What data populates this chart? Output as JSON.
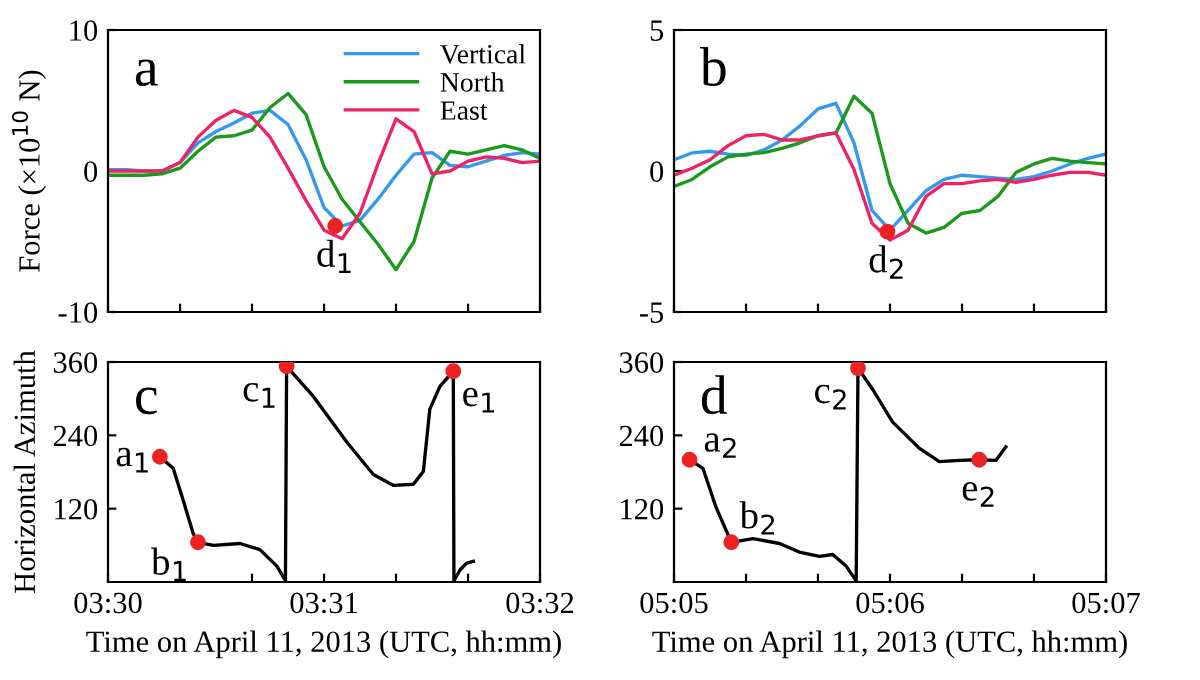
{
  "chart_data": [
    {
      "type": "line",
      "ylabel": "Force (×10$^{10}$ N)",
      "xlim": [
        3.5,
        3.53333
      ],
      "ylim": [
        -10,
        10
      ],
      "yticks": [
        -10,
        0,
        10
      ],
      "xticks": [
        {
          "value": 3.5,
          "label": null
        },
        {
          "value": 3.50556,
          "label": null
        },
        {
          "value": 3.51111,
          "label": null
        },
        {
          "value": 3.51667,
          "label": null
        },
        {
          "value": 3.52222,
          "label": null
        },
        {
          "value": 3.52778,
          "label": null
        },
        {
          "value": 3.53333,
          "label": null
        }
      ],
      "tick_labels": "y",
      "legend": "top right",
      "grid": false,
      "line_style": "solid",
      "annotations": [
        "a",
        {
          "text": "d$_{1}$",
          "x": 3.51753,
          "y": -3.9
        }
      ],
      "x": [
        3.5,
        3.50139,
        3.50278,
        3.50417,
        3.50556,
        3.50694,
        3.50833,
        3.50972,
        3.51111,
        3.5125,
        3.51389,
        3.51528,
        3.51667,
        3.51806,
        3.51944,
        3.52083,
        3.52222,
        3.52361,
        3.525,
        3.52639,
        3.52778,
        3.52917,
        3.53056,
        3.53194,
        3.53333
      ],
      "series": [
        {
          "name": "Vertical",
          "color": "#3399ee",
          "values": [
            0.1,
            0.1,
            0,
            0,
            0.6,
            2.0,
            2.8,
            3.4,
            4.1,
            4.3,
            3.3,
            0.8,
            -2.6,
            -3.9,
            -3.5,
            -2.0,
            -0.3,
            1.2,
            1.3,
            0.4,
            0.3,
            0.7,
            1.1,
            1.3,
            1.2
          ]
        },
        {
          "name": "North",
          "color": "#1a991a",
          "values": [
            -0.3,
            -0.3,
            -0.3,
            -0.2,
            0.2,
            1.4,
            2.4,
            2.5,
            2.9,
            4.5,
            5.5,
            4.0,
            0.3,
            -2.0,
            -3.6,
            -5.2,
            -7.0,
            -5.0,
            -0.5,
            1.4,
            1.2,
            1.5,
            1.8,
            1.5,
            0.9
          ]
        },
        {
          "name": "East",
          "color": "#ee2266",
          "values": [
            0,
            0,
            0,
            0,
            0.6,
            2.4,
            3.6,
            4.3,
            3.8,
            2.4,
            0.2,
            -2.1,
            -4.2,
            -4.8,
            -3.0,
            0.5,
            3.7,
            2.8,
            -0.2,
            0.0,
            0.7,
            1.0,
            0.9,
            0.6,
            0.7
          ]
        },
        {
          "type": "scatter",
          "color": "#ee2222",
          "marker": "circle",
          "x": [
            3.51753
          ],
          "values": [
            -3.9
          ]
        }
      ]
    },
    {
      "type": "line",
      "xlim": [
        5.08333,
        5.11667
      ],
      "ylim": [
        -5,
        5
      ],
      "yticks": [
        -5,
        0,
        5
      ],
      "xticks": [
        {
          "value": 5.08333,
          "label": null
        },
        {
          "value": 5.08889,
          "label": null
        },
        {
          "value": 5.09444,
          "label": null
        },
        {
          "value": 5.1,
          "label": null
        },
        {
          "value": 5.10556,
          "label": null
        },
        {
          "value": 5.11111,
          "label": null
        },
        {
          "value": 5.11667,
          "label": null
        }
      ],
      "tick_labels": "y",
      "grid": false,
      "line_style": "solid",
      "annotations": [
        "b",
        {
          "text": "d$_{2}$",
          "x": 5.0998,
          "y": -2.15
        }
      ],
      "x": [
        5.08333,
        5.08472,
        5.08611,
        5.0875,
        5.08889,
        5.09028,
        5.09167,
        5.09306,
        5.09444,
        5.09583,
        5.09722,
        5.09861,
        5.1,
        5.10139,
        5.10278,
        5.10417,
        5.10556,
        5.10694,
        5.10833,
        5.10972,
        5.11111,
        5.1125,
        5.11389,
        5.11528,
        5.11667
      ],
      "series": [
        {
          "color": "#3399ee",
          "values": [
            0.4,
            0.64,
            0.7,
            0.6,
            0.55,
            0.75,
            1.1,
            1.6,
            2.2,
            2.4,
            1.0,
            -1.4,
            -2.1,
            -1.4,
            -0.7,
            -0.3,
            -0.15,
            -0.2,
            -0.25,
            -0.3,
            -0.2,
            0,
            0.25,
            0.45,
            0.6
          ]
        },
        {
          "color": "#1a991a",
          "values": [
            -0.55,
            -0.3,
            0.15,
            0.5,
            0.6,
            0.65,
            0.8,
            1.0,
            1.25,
            1.35,
            2.65,
            2.05,
            -0.45,
            -1.85,
            -2.2,
            -2.0,
            -1.5,
            -1.4,
            -0.9,
            -0.05,
            0.25,
            0.45,
            0.35,
            0.3,
            0.25
          ]
        },
        {
          "color": "#ee2266",
          "values": [
            -0.15,
            0.1,
            0.4,
            0.9,
            1.25,
            1.3,
            1.1,
            1.1,
            1.25,
            1.35,
            0.05,
            -1.85,
            -2.45,
            -2.1,
            -0.9,
            -0.45,
            -0.45,
            -0.35,
            -0.3,
            -0.4,
            -0.3,
            -0.15,
            -0.05,
            -0.05,
            -0.15
          ]
        },
        {
          "type": "scatter",
          "color": "#ee2222",
          "marker": "circle",
          "x": [
            5.0998
          ],
          "values": [
            -2.15
          ]
        }
      ]
    },
    {
      "type": "line",
      "ylabel": "Horizontal Azimuth",
      "xlabel": "Time on April 11, 2013 (UTC, hh:mm)",
      "xlim": [
        3.5,
        3.53333
      ],
      "ylim": [
        0,
        360
      ],
      "yticks": [
        120,
        240,
        360
      ],
      "xticks": [
        {
          "value": 3.5,
          "label": "03:30"
        },
        {
          "value": 3.50556,
          "label": null
        },
        {
          "value": 3.51111,
          "label": null
        },
        {
          "value": 3.51667,
          "label": "03:31"
        },
        {
          "value": 3.52222,
          "label": null
        },
        {
          "value": 3.52778,
          "label": null
        },
        {
          "value": 3.53333,
          "label": "03:32"
        }
      ],
      "grid": false,
      "line_style": "solid",
      "annotations": [
        "c",
        {
          "text": "a$_{1}$",
          "x": 3.504,
          "y": 205
        },
        {
          "text": "b$_{1}$",
          "x": 3.50694,
          "y": 65
        },
        {
          "text": "c$_{1}$",
          "x": 3.51378,
          "y": 353
        },
        {
          "text": "e$_{1}$",
          "x": 3.52664,
          "y": 345
        }
      ],
      "series": [
        {
          "color": "#000000",
          "x": [
            3.504,
            3.50503,
            3.50581,
            3.50658,
            3.50694,
            3.50814,
            3.51019,
            3.51172,
            3.51303,
            3.51369,
            3.51378,
            3.51583,
            3.51842,
            3.52047,
            3.52203,
            3.52356,
            3.52433,
            3.52483,
            3.52561,
            3.52664,
            3.52669,
            3.52717,
            3.52767,
            3.52819
          ],
          "values": [
            205,
            186,
            133,
            79,
            65,
            60,
            63,
            53,
            26,
            2,
            353,
            304,
            229,
            176,
            158,
            160,
            181,
            283,
            320,
            345,
            2,
            20,
            31,
            34
          ]
        },
        {
          "type": "scatter",
          "color": "#ee2222",
          "marker": "circle",
          "x": [
            3.504,
            3.50694,
            3.51378,
            3.52664
          ],
          "values": [
            205,
            65,
            353,
            345
          ]
        }
      ]
    },
    {
      "type": "line",
      "xlabel": "Time on April 11, 2013 (UTC, hh:mm)",
      "xlim": [
        5.08333,
        5.11667
      ],
      "ylim": [
        0,
        360
      ],
      "yticks": [
        120,
        240,
        360
      ],
      "xticks": [
        {
          "value": 5.08333,
          "label": "05:05"
        },
        {
          "value": 5.08889,
          "label": null
        },
        {
          "value": 5.09444,
          "label": null
        },
        {
          "value": 5.1,
          "label": "05:06"
        },
        {
          "value": 5.10556,
          "label": null
        },
        {
          "value": 5.11111,
          "label": null
        },
        {
          "value": 5.11667,
          "label": "05:07"
        }
      ],
      "grid": false,
      "line_style": "solid",
      "annotations": [
        "d",
        {
          "text": "a$_{2}$",
          "x": 5.08453,
          "y": 200
        },
        {
          "text": "b$_{2}$",
          "x": 5.08775,
          "y": 65
        },
        {
          "text": "c$_{2}$",
          "x": 5.09753,
          "y": 350
        },
        {
          "text": "e$_{2}$",
          "x": 5.10689,
          "y": 200
        }
      ],
      "series": [
        {
          "color": "#000000",
          "x": [
            5.08453,
            5.08556,
            5.08658,
            5.08775,
            5.08942,
            5.09147,
            5.093,
            5.09456,
            5.09558,
            5.09661,
            5.09739,
            5.09753,
            5.09867,
            5.10019,
            5.10225,
            5.10381,
            5.10536,
            5.10689,
            5.10817,
            5.10894
          ],
          "values": [
            200,
            186,
            122,
            65,
            71,
            63,
            49,
            42,
            45,
            26,
            2,
            350,
            315,
            262,
            219,
            197,
            199,
            200,
            199,
            221
          ]
        },
        {
          "type": "scatter",
          "color": "#ee2222",
          "marker": "circle",
          "x": [
            5.08453,
            5.08775,
            5.09753,
            5.10689
          ],
          "values": [
            200,
            65,
            350,
            200
          ]
        }
      ]
    }
  ]
}
